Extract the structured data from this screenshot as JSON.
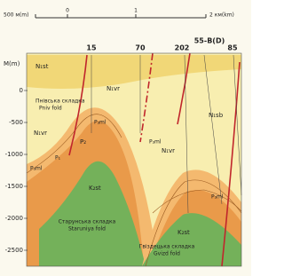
{
  "scale": {
    "labels": [
      "500 м(m)",
      "0",
      "1",
      "2 км(km)"
    ]
  },
  "axis": {
    "title": "M(m)",
    "labels": [
      "0",
      "-500",
      "-1000",
      "-1500",
      "-2000",
      "-2500"
    ]
  },
  "wells": [
    "15",
    "70",
    "202",
    "55-B(D)",
    "85"
  ],
  "units": [
    "N₁st",
    "N₁vr",
    "N₁sb",
    "N₁vr",
    "P₃ml",
    "P₂",
    "P₃ml",
    "P₁",
    "K₂st",
    "N₁vr",
    "P₃ml",
    "P₃ml",
    "K₂st"
  ],
  "folds": [
    {
      "uk": "Пнівська складка",
      "en": "Pniv fold"
    },
    {
      "uk": "Старунська складка",
      "en": "Staruniya fold"
    },
    {
      "uk": "Гвіздецька складка",
      "en": "Gvizd fold"
    }
  ]
}
